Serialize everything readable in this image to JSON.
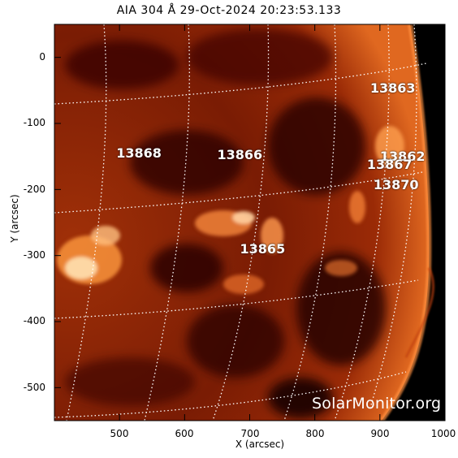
{
  "figure": {
    "title": "AIA 304 Å 29-Oct-2024 20:23:53.133",
    "xlabel": "X (arcsec)",
    "ylabel": "Y (arcsec)",
    "watermark": "SolarMonitor.org",
    "xticks": [
      "500",
      "600",
      "700",
      "800",
      "900",
      "1000"
    ],
    "yticks": [
      "0",
      "-100",
      "-200",
      "-300",
      "-400",
      "-500"
    ],
    "xlim": [
      400,
      1000
    ],
    "ylim": [
      -550,
      50
    ],
    "colormap": "sdoaia304 (black-red-orange-white)",
    "grid": "heliographic dotted white lines",
    "regions": [
      {
        "label": "13868",
        "x": 530,
        "y": -145
      },
      {
        "label": "13866",
        "x": 685,
        "y": -148
      },
      {
        "label": "13863",
        "x": 920,
        "y": -47
      },
      {
        "label": "13862",
        "x": 935,
        "y": -150
      },
      {
        "label": "13867",
        "x": 915,
        "y": -163
      },
      {
        "label": "13870",
        "x": 925,
        "y": -193
      },
      {
        "label": "13865",
        "x": 720,
        "y": -290
      }
    ]
  }
}
